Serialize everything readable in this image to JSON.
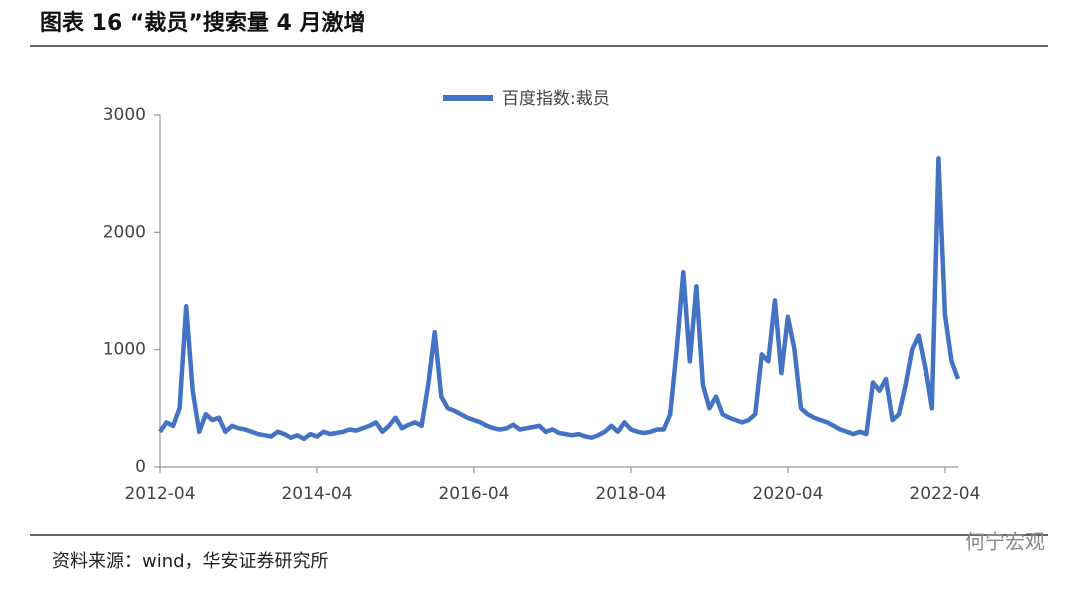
{
  "header": {
    "title": "图表 16 “裁员”搜索量 4 月激增"
  },
  "chart_data": {
    "type": "line",
    "x": [
      "2012-04",
      "2012-05",
      "2012-06",
      "2012-07",
      "2012-08",
      "2012-09",
      "2012-10",
      "2012-11",
      "2012-12",
      "2013-01",
      "2013-02",
      "2013-03",
      "2013-04",
      "2013-05",
      "2013-06",
      "2013-07",
      "2013-08",
      "2013-09",
      "2013-10",
      "2013-11",
      "2013-12",
      "2014-01",
      "2014-02",
      "2014-03",
      "2014-04",
      "2014-05",
      "2014-06",
      "2014-07",
      "2014-08",
      "2014-09",
      "2014-10",
      "2014-11",
      "2014-12",
      "2015-01",
      "2015-02",
      "2015-03",
      "2015-04",
      "2015-05",
      "2015-06",
      "2015-07",
      "2015-08",
      "2015-09",
      "2015-10",
      "2015-11",
      "2015-12",
      "2016-01",
      "2016-02",
      "2016-03",
      "2016-04",
      "2016-05",
      "2016-06",
      "2016-07",
      "2016-08",
      "2016-09",
      "2016-10",
      "2016-11",
      "2016-12",
      "2017-01",
      "2017-02",
      "2017-03",
      "2017-04",
      "2017-05",
      "2017-06",
      "2017-07",
      "2017-08",
      "2017-09",
      "2017-10",
      "2017-11",
      "2017-12",
      "2018-01",
      "2018-02",
      "2018-03",
      "2018-04",
      "2018-05",
      "2018-06",
      "2018-07",
      "2018-08",
      "2018-09",
      "2018-10",
      "2018-11",
      "2018-12",
      "2019-01",
      "2019-02",
      "2019-03",
      "2019-04",
      "2019-05",
      "2019-06",
      "2019-07",
      "2019-08",
      "2019-09",
      "2019-10",
      "2019-11",
      "2019-12",
      "2020-01",
      "2020-02",
      "2020-03",
      "2020-04",
      "2020-05",
      "2020-06",
      "2020-07",
      "2020-08",
      "2020-09",
      "2020-10",
      "2020-11",
      "2020-12",
      "2021-01",
      "2021-02",
      "2021-03",
      "2021-04",
      "2021-05",
      "2021-06",
      "2021-07",
      "2021-08",
      "2021-09",
      "2021-10",
      "2021-11",
      "2021-12",
      "2022-01",
      "2022-02",
      "2022-03",
      "2022-04",
      "2022-05",
      "2022-06"
    ],
    "series": [
      {
        "name": "百度指数:裁员",
        "color": "#4472c4",
        "values": [
          300,
          380,
          350,
          500,
          1370,
          650,
          300,
          450,
          400,
          420,
          300,
          350,
          330,
          320,
          300,
          280,
          270,
          260,
          300,
          280,
          250,
          270,
          240,
          280,
          260,
          300,
          280,
          290,
          300,
          320,
          310,
          330,
          350,
          380,
          300,
          350,
          420,
          330,
          360,
          380,
          350,
          700,
          1150,
          600,
          500,
          480,
          450,
          420,
          400,
          380,
          350,
          330,
          320,
          330,
          360,
          320,
          330,
          340,
          350,
          300,
          320,
          290,
          280,
          270,
          280,
          260,
          250,
          270,
          300,
          350,
          300,
          380,
          320,
          300,
          290,
          300,
          320,
          320,
          450,
          1000,
          1660,
          900,
          1540,
          700,
          500,
          600,
          450,
          420,
          400,
          380,
          400,
          450,
          960,
          900,
          1420,
          800,
          1280,
          1000,
          500,
          450,
          420,
          400,
          380,
          350,
          320,
          300,
          280,
          300,
          280,
          720,
          650,
          750,
          400,
          450,
          700,
          1000,
          1120,
          850,
          500,
          2630,
          1300,
          900,
          750
        ]
      }
    ],
    "xlim": [
      "2012-04",
      "2022-06"
    ],
    "xticks": [
      "2012-04",
      "2014-04",
      "2016-04",
      "2018-04",
      "2020-04",
      "2022-04"
    ],
    "ylim": [
      0,
      3000
    ],
    "yticks": [
      0,
      1000,
      2000,
      3000
    ],
    "legend": "top"
  },
  "footer": {
    "source": "资料来源：wind，华安证券研究所",
    "watermark": "何宁宏观"
  }
}
